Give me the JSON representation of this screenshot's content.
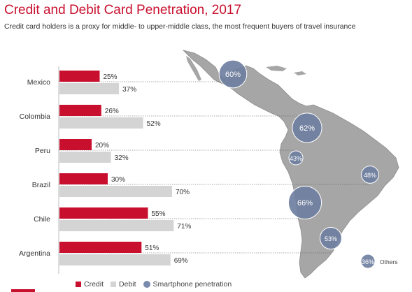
{
  "title": "Credit and Debit Card Penetration, 2017",
  "subtitle": "Credit card holders is a proxy for middle- to upper-middle class, the most frequent buyers of travel insurance",
  "legend": {
    "credit": "Credit",
    "debit": "Debit",
    "smartphone": "Smartphone penetration"
  },
  "colors": {
    "credit": "#c8102e",
    "debit": "#d4d4d4",
    "bubble": "#6f7f9f",
    "map": "#a6a6a6"
  },
  "chart_data": {
    "type": "bar",
    "orientation": "horizontal",
    "categories": [
      "Mexico",
      "Colombia",
      "Peru",
      "Brazil",
      "Chile",
      "Argentina"
    ],
    "series": [
      {
        "name": "Credit",
        "values": [
          25,
          26,
          20,
          30,
          55,
          51
        ]
      },
      {
        "name": "Debit",
        "values": [
          37,
          52,
          32,
          70,
          71,
          69
        ]
      }
    ],
    "value_suffix": "%",
    "xlim": [
      0,
      100
    ],
    "smartphone_penetration": {
      "name": "Smartphone penetration",
      "values": [
        {
          "country": "Mexico",
          "value": 60,
          "label": "60%"
        },
        {
          "country": "Colombia",
          "value": 62,
          "label": "62%"
        },
        {
          "country": "Peru",
          "value": 43,
          "label": "43%"
        },
        {
          "country": "Brazil",
          "value": 48,
          "label": "48%"
        },
        {
          "country": "Chile",
          "value": 66,
          "label": "66%"
        },
        {
          "country": "Argentina",
          "value": 53,
          "label": "53%"
        },
        {
          "country": "Others",
          "value": 36,
          "label": "36%"
        }
      ]
    },
    "others_label": "Others"
  }
}
